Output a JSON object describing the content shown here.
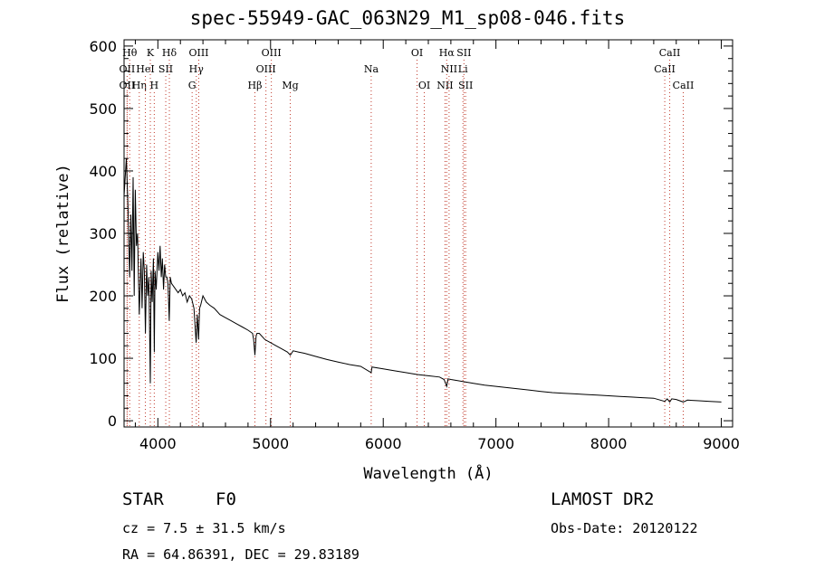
{
  "header": {
    "title": "spec-55949-GAC_063N29_M1_sp08-046.fits"
  },
  "footer": {
    "object_class": "STAR",
    "subclass": "F0",
    "survey": "LAMOST DR2",
    "redshift": "cz = 7.5 ± 31.5 km/s",
    "obs_date": "Obs-Date: 20120122",
    "coords": "RA =  64.86391, DEC =  29.83189"
  },
  "chart_data": {
    "type": "line",
    "title": "spec-55949-GAC_063N29_M1_sp08-046.fits",
    "xlabel": "Wavelength (Å)",
    "ylabel": "Flux (relative)",
    "xlim": [
      3700,
      9100
    ],
    "ylim": [
      -10,
      610
    ],
    "xticks": [
      4000,
      5000,
      6000,
      7000,
      8000,
      9000
    ],
    "yticks": [
      0,
      100,
      200,
      300,
      400,
      500,
      600
    ],
    "grid": false,
    "line_color": "#000000",
    "marker_color": "#c0392b",
    "series": [
      {
        "x": [
          3700,
          3720,
          3735,
          3750,
          3760,
          3770,
          3780,
          3790,
          3800,
          3810,
          3820,
          3835,
          3850,
          3860,
          3870,
          3880,
          3890,
          3900,
          3910,
          3920,
          3933,
          3940,
          3950,
          3960,
          3968,
          3975,
          3985,
          4000,
          4010,
          4020,
          4030,
          4040,
          4050,
          4060,
          4070,
          4080,
          4090,
          4101,
          4110,
          4120,
          4140,
          4160,
          4180,
          4200,
          4220,
          4240,
          4260,
          4280,
          4300,
          4320,
          4340,
          4350,
          4361,
          4370,
          4380,
          4400,
          4430,
          4460,
          4500,
          4550,
          4600,
          4650,
          4700,
          4750,
          4800,
          4840,
          4850,
          4861,
          4872,
          4880,
          4900,
          4950,
          5000,
          5050,
          5100,
          5150,
          5175,
          5200,
          5250,
          5300,
          5400,
          5500,
          5600,
          5700,
          5800,
          5893,
          5900,
          6000,
          6100,
          6200,
          6300,
          6400,
          6500,
          6540,
          6563,
          6575,
          6600,
          6700,
          6800,
          6900,
          7000,
          7100,
          7200,
          7300,
          7400,
          7500,
          7600,
          7700,
          7800,
          7900,
          8000,
          8100,
          8200,
          8300,
          8400,
          8498,
          8520,
          8542,
          8560,
          8600,
          8662,
          8700,
          8800,
          8900,
          9000
        ],
        "y": [
          360,
          420,
          340,
          230,
          330,
          240,
          390,
          200,
          370,
          280,
          300,
          170,
          260,
          180,
          270,
          240,
          140,
          250,
          200,
          230,
          60,
          240,
          190,
          260,
          110,
          240,
          210,
          270,
          240,
          280,
          230,
          260,
          210,
          250,
          230,
          230,
          220,
          160,
          230,
          220,
          215,
          210,
          205,
          210,
          200,
          205,
          190,
          200,
          195,
          180,
          125,
          170,
          130,
          180,
          185,
          200,
          190,
          185,
          180,
          170,
          165,
          160,
          155,
          150,
          145,
          140,
          130,
          105,
          135,
          140,
          140,
          130,
          125,
          120,
          115,
          110,
          105,
          112,
          110,
          108,
          103,
          98,
          94,
          90,
          87,
          77,
          86,
          83,
          80,
          77,
          74,
          72,
          70,
          66,
          55,
          67,
          66,
          63,
          60,
          57,
          55,
          53,
          51,
          49,
          47,
          45,
          44,
          43,
          42,
          41,
          40,
          39,
          38,
          37,
          36,
          31,
          35,
          30,
          35,
          34,
          30,
          33,
          32,
          31,
          30
        ]
      }
    ],
    "line_markers": [
      {
        "x": 3750,
        "row": 0,
        "label": "Hθ"
      },
      {
        "x": 3727,
        "row": 1,
        "label": "OII"
      },
      {
        "x": 3727,
        "row": 2,
        "label": "OII"
      },
      {
        "x": 3835,
        "row": 2,
        "label": "Hη"
      },
      {
        "x": 3889,
        "row": 1,
        "label": "HeI"
      },
      {
        "x": 3933,
        "row": 0,
        "label": "K"
      },
      {
        "x": 3968,
        "row": 2,
        "label": "H"
      },
      {
        "x": 4070,
        "row": 1,
        "label": "SII"
      },
      {
        "x": 4102,
        "row": 0,
        "label": "Hδ"
      },
      {
        "x": 4304,
        "row": 2,
        "label": "G"
      },
      {
        "x": 4341,
        "row": 1,
        "label": "Hγ"
      },
      {
        "x": 4363,
        "row": 0,
        "label": "OIII"
      },
      {
        "x": 4861,
        "row": 2,
        "label": "Hβ"
      },
      {
        "x": 4959,
        "row": 1,
        "label": "OIII"
      },
      {
        "x": 5007,
        "row": 0,
        "label": "OIII"
      },
      {
        "x": 5175,
        "row": 2,
        "label": "Mg"
      },
      {
        "x": 5893,
        "row": 1,
        "label": "Na"
      },
      {
        "x": 6300,
        "row": 0,
        "label": "OI"
      },
      {
        "x": 6364,
        "row": 2,
        "label": "OI"
      },
      {
        "x": 6548,
        "row": 2,
        "label": "NII"
      },
      {
        "x": 6563,
        "row": 0,
        "label": "Hα"
      },
      {
        "x": 6584,
        "row": 1,
        "label": "NII"
      },
      {
        "x": 6707,
        "row": 1,
        "label": "Li"
      },
      {
        "x": 6716,
        "row": 0,
        "label": "SII"
      },
      {
        "x": 6731,
        "row": 2,
        "label": "SII"
      },
      {
        "x": 8498,
        "row": 1,
        "label": "CaII"
      },
      {
        "x": 8542,
        "row": 0,
        "label": "CaII"
      },
      {
        "x": 8662,
        "row": 2,
        "label": "CaII"
      }
    ]
  }
}
